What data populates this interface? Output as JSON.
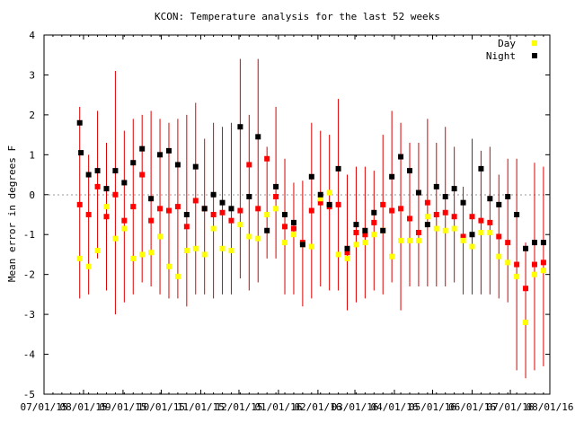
{
  "chart_data": {
    "type": "scatter",
    "title": "KCON: Temperature analysis for the last 52 weeks",
    "xlabel": "",
    "ylabel": "Mean error in degrees F",
    "xlim": [
      "07/01/15",
      "08/01/16"
    ],
    "ylim": [
      -5,
      4
    ],
    "yticks": [
      4,
      3,
      2,
      1,
      0,
      -1,
      -2,
      -3,
      -4,
      -5
    ],
    "xticks": [
      "07/01/15",
      "08/01/15",
      "09/01/15",
      "10/01/15",
      "11/01/15",
      "12/01/15",
      "01/01/16",
      "02/01/16",
      "03/01/16",
      "04/01/16",
      "05/01/16",
      "06/01/16",
      "07/01/16",
      "08/01/16"
    ],
    "grid": false,
    "zero_line": true,
    "legend": "top-right",
    "colors": {
      "day": "#ffff00",
      "night": "#000000",
      "overall": "#ff0000",
      "errorbar": "#dd0000",
      "zero_line": "#999999"
    },
    "series": [
      {
        "name": "Day",
        "x": [
          "07/29/15",
          "08/05/15",
          "08/12/15",
          "08/19/15",
          "08/26/15",
          "09/02/15",
          "09/09/15",
          "09/16/15",
          "09/23/15",
          "09/30/15",
          "10/07/15",
          "10/14/15",
          "10/21/15",
          "10/28/15",
          "11/04/15",
          "11/11/15",
          "11/18/15",
          "11/25/15",
          "12/02/15",
          "12/09/15",
          "12/16/15",
          "12/23/15",
          "12/30/15",
          "01/06/16",
          "01/13/16",
          "01/20/16",
          "01/27/16",
          "02/03/16",
          "02/10/16",
          "02/17/16",
          "02/24/16",
          "03/02/16",
          "03/09/16",
          "03/16/16",
          "03/23/16",
          "03/30/16",
          "04/06/16",
          "04/13/16",
          "04/20/16",
          "04/27/16",
          "05/04/16",
          "05/11/16",
          "05/18/16",
          "05/25/16",
          "06/01/16",
          "06/08/16",
          "06/15/16",
          "06/22/16",
          "06/29/16",
          "07/06/16",
          "07/13/16",
          "07/20/16",
          "07/27/16"
        ],
        "y": [
          -1.6,
          -1.8,
          -1.4,
          -0.3,
          -1.1,
          -0.85,
          -1.6,
          -1.5,
          -1.45,
          -1.05,
          -1.8,
          -2.05,
          -1.4,
          -1.35,
          -1.5,
          -0.85,
          -1.35,
          -1.4,
          -0.75,
          -1.05,
          -1.1,
          -0.5,
          -0.35,
          -1.2,
          -1.0,
          -1.25,
          -1.3,
          -0.1,
          0.05,
          -1.5,
          -1.6,
          -1.25,
          -1.2,
          -1.0,
          -0.9,
          -1.55,
          -1.15,
          -1.15,
          -1.15,
          -0.55,
          -0.85,
          -0.9,
          -0.85,
          -1.15,
          -1.3,
          -0.95,
          -0.95,
          -1.55,
          -1.7,
          -2.05,
          -3.2,
          -2.0,
          -1.9
        ]
      },
      {
        "name": "Night",
        "x": [
          "07/29/15",
          "07/30/15",
          "08/05/15",
          "08/12/15",
          "08/19/15",
          "08/26/15",
          "09/02/15",
          "09/09/15",
          "09/16/15",
          "09/23/15",
          "09/30/15",
          "10/07/15",
          "10/14/15",
          "10/21/15",
          "10/28/15",
          "11/04/15",
          "11/11/15",
          "11/18/15",
          "11/25/15",
          "12/02/15",
          "12/09/15",
          "12/16/15",
          "12/23/15",
          "12/30/15",
          "01/06/16",
          "01/13/16",
          "01/20/16",
          "01/27/16",
          "02/03/16",
          "02/10/16",
          "02/17/16",
          "02/24/16",
          "03/02/16",
          "03/09/16",
          "03/16/16",
          "03/23/16",
          "03/30/16",
          "04/06/16",
          "04/13/16",
          "04/20/16",
          "04/27/16",
          "05/04/16",
          "05/11/16",
          "05/18/16",
          "05/25/16",
          "06/01/16",
          "06/08/16",
          "06/15/16",
          "06/22/16",
          "06/29/16",
          "07/06/16",
          "07/13/16",
          "07/20/16",
          "07/27/16"
        ],
        "y": [
          1.8,
          1.05,
          0.5,
          0.6,
          0.15,
          0.6,
          0.3,
          0.8,
          1.15,
          -0.1,
          1.0,
          1.1,
          0.75,
          -0.5,
          0.7,
          -0.35,
          0.0,
          -0.2,
          -0.35,
          1.7,
          -0.05,
          1.45,
          -0.9,
          0.2,
          -0.5,
          -0.7,
          -1.25,
          0.45,
          0.0,
          -0.25,
          0.65,
          -1.35,
          -0.75,
          -0.9,
          -0.45,
          -0.9,
          0.45,
          0.95,
          0.6,
          0.05,
          -0.75,
          0.2,
          -0.05,
          0.15,
          -0.2,
          -1.0,
          0.65,
          -0.1,
          -0.25,
          -0.05,
          -0.5,
          -1.35,
          -1.2,
          -1.2
        ]
      },
      {
        "name": "",
        "type": "errorbar",
        "x": [
          "07/29/15",
          "08/05/15",
          "08/12/15",
          "08/19/15",
          "08/26/15",
          "09/02/15",
          "09/09/15",
          "09/16/15",
          "09/23/15",
          "09/30/15",
          "10/07/15",
          "10/14/15",
          "10/21/15",
          "10/28/15",
          "11/04/15",
          "11/11/15",
          "11/18/15",
          "11/25/15",
          "12/02/15",
          "12/09/15",
          "12/16/15",
          "12/23/15",
          "12/30/15",
          "01/06/16",
          "01/13/16",
          "01/20/16",
          "01/27/16",
          "02/03/16",
          "02/10/16",
          "02/17/16",
          "02/24/16",
          "03/02/16",
          "03/09/16",
          "03/16/16",
          "03/23/16",
          "03/30/16",
          "04/06/16",
          "04/13/16",
          "04/20/16",
          "04/27/16",
          "05/04/16",
          "05/11/16",
          "05/18/16",
          "05/25/16",
          "06/01/16",
          "06/08/16",
          "06/15/16",
          "06/22/16",
          "06/29/16",
          "07/06/16",
          "07/13/16",
          "07/20/16",
          "07/27/16"
        ],
        "y": [
          -0.25,
          -0.5,
          0.2,
          -0.55,
          0.0,
          -0.65,
          -0.3,
          0.5,
          -0.65,
          -0.35,
          -0.4,
          -0.3,
          -0.8,
          -0.15,
          -0.35,
          -0.5,
          -0.45,
          -0.65,
          -0.4,
          0.75,
          -0.35,
          0.9,
          -0.05,
          -0.8,
          -0.85,
          -1.2,
          -0.4,
          -0.2,
          -0.3,
          -0.25,
          -1.45,
          -0.95,
          -1.0,
          -0.7,
          -0.25,
          -0.4,
          -0.35,
          -0.6,
          -0.95,
          -0.2,
          -0.5,
          -0.45,
          -0.55,
          -1.05,
          -0.55,
          -0.65,
          -0.7,
          -1.05,
          -1.2,
          -1.75,
          -2.35,
          -1.75,
          -1.7
        ],
        "low": [
          -2.6,
          -2.5,
          -1.6,
          -2.4,
          -3.0,
          -2.7,
          -2.5,
          -2.2,
          -2.3,
          -2.5,
          -2.6,
          -2.6,
          -2.8,
          -2.5,
          -2.5,
          -2.6,
          -2.5,
          -2.5,
          -2.1,
          -2.4,
          -2.2,
          -1.6,
          -1.6,
          -2.5,
          -2.5,
          -2.8,
          -2.6,
          -2.3,
          -2.4,
          -2.4,
          -2.9,
          -2.7,
          -2.6,
          -2.4,
          -2.5,
          -2.2,
          -2.9,
          -2.3,
          -2.3,
          -2.3,
          -2.3,
          -2.3,
          -2.2,
          -2.5,
          -2.5,
          -2.5,
          -2.5,
          -2.6,
          -2.7,
          -4.4,
          -4.6,
          -4.4,
          -4.3
        ],
        "high": [
          2.2,
          1.0,
          2.1,
          1.3,
          3.1,
          1.6,
          1.9,
          2.0,
          2.1,
          1.9,
          1.8,
          1.9,
          2.0,
          2.3,
          1.4,
          1.8,
          1.7,
          1.8,
          3.4,
          2.0,
          3.4,
          1.2,
          2.2,
          0.9,
          0.3,
          0.35,
          1.8,
          1.6,
          1.5,
          2.4,
          0.5,
          0.7,
          0.7,
          0.6,
          1.5,
          2.1,
          1.8,
          1.3,
          1.3,
          1.9,
          1.3,
          1.7,
          1.2,
          0.2,
          1.4,
          1.1,
          1.2,
          0.5,
          0.9,
          0.9,
          -1.2,
          0.8,
          0.7
        ]
      }
    ]
  }
}
